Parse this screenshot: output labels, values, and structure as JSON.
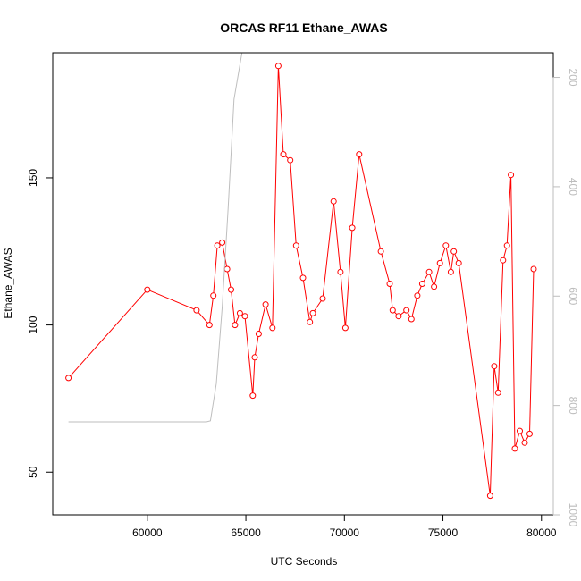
{
  "chart_data": {
    "type": "line",
    "title": "ORCAS RF11 Ethane_AWAS",
    "xlabel": "UTC Seconds",
    "ylabel": "Ethane_AWAS",
    "xlim": [
      55200,
      80600
    ],
    "ylim": [
      35.5,
      192.5
    ],
    "y2lim": [
      1000,
      155
    ],
    "x_ticks": [
      {
        "value": 60000,
        "label": "60000"
      },
      {
        "value": 65000,
        "label": "65000"
      },
      {
        "value": 70000,
        "label": "70000"
      },
      {
        "value": 75000,
        "label": "75000"
      },
      {
        "value": 80000,
        "label": "80000"
      }
    ],
    "y_ticks": [
      {
        "value": 50,
        "label": "50"
      },
      {
        "value": 100,
        "label": "100"
      },
      {
        "value": 150,
        "label": "150"
      }
    ],
    "y2_ticks": [
      {
        "value": 200,
        "label": "200"
      },
      {
        "value": 400,
        "label": "400"
      },
      {
        "value": 600,
        "label": "600"
      },
      {
        "value": 800,
        "label": "800"
      },
      {
        "value": 1000,
        "label": "1000"
      }
    ],
    "series": [
      {
        "color": "#ff0000",
        "x": [
          56000,
          60000,
          62500,
          63150,
          63350,
          63550,
          63800,
          64050,
          64250,
          64450,
          64700,
          64950,
          65350,
          65450,
          65650,
          66000,
          66350,
          66650,
          66900,
          67250,
          67550,
          67900,
          68250,
          68400,
          68900,
          69450,
          69800,
          70050,
          70400,
          70750,
          71850,
          72300,
          72450,
          72750,
          73150,
          73400,
          73700,
          73950,
          74300,
          74550,
          74850,
          75150,
          75400,
          75550,
          75800,
          77400,
          77600,
          77800,
          78050,
          78250,
          78450,
          78650,
          78900,
          79150,
          79400,
          79600
        ],
        "y": [
          82,
          112,
          105,
          100,
          110,
          127,
          128,
          119,
          112,
          100,
          104,
          103,
          76,
          89,
          97,
          107,
          99,
          188,
          158,
          156,
          127,
          116,
          101,
          104,
          109,
          142,
          118,
          99,
          133,
          158,
          125,
          114,
          105,
          103,
          105,
          102,
          110,
          114,
          118,
          113,
          121,
          127,
          118,
          125,
          121,
          42,
          86,
          77,
          122,
          127,
          151,
          58,
          64,
          60,
          63,
          119
        ]
      },
      {
        "color": "#bebebe",
        "y_axis": "right",
        "x": [
          56000,
          63000,
          63200,
          63500,
          63800,
          64100,
          64400,
          64800,
          65000,
          65250,
          65500,
          65800,
          66100,
          66400,
          66700,
          66900,
          67100,
          67400,
          67700,
          67900,
          68100,
          68300,
          68500,
          68700,
          68900,
          69100,
          69400,
          69700,
          69950,
          70150,
          70400,
          70800,
          71300,
          71800,
          72100,
          72300,
          72600,
          73000,
          73300,
          73500,
          73800,
          74200,
          74500,
          74800,
          75100,
          75400,
          75700,
          76000,
          76400,
          76800,
          77200,
          77400,
          77600,
          77900,
          78100,
          78300,
          78500,
          78700,
          78900,
          79100,
          79300,
          79600
        ],
        "y": [
          830,
          830,
          828,
          760,
          620,
          440,
          240,
          155,
          155,
          155,
          155,
          155,
          155,
          155,
          155,
          155,
          155,
          155,
          155,
          155,
          155,
          155,
          155,
          155,
          155,
          155,
          155,
          155,
          155,
          155,
          155,
          155,
          155,
          155,
          155,
          155,
          155,
          155,
          155,
          155,
          155,
          155,
          155,
          155,
          155,
          155,
          155,
          155,
          155,
          155,
          155,
          155,
          155,
          155,
          155,
          155,
          155,
          155,
          155,
          155,
          155,
          155
        ]
      }
    ]
  }
}
